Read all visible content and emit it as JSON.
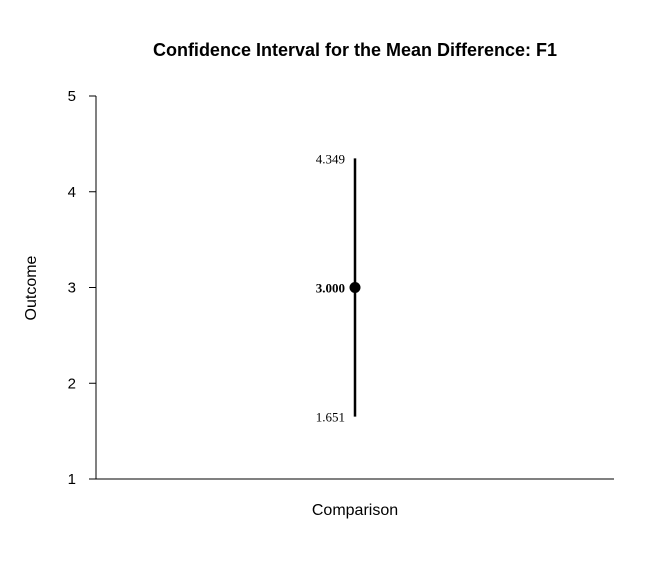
{
  "chart_data": {
    "type": "errorbar",
    "title": "Confidence Interval for the Mean Difference: F1",
    "xlabel": "Comparison",
    "ylabel": "Outcome",
    "ylim": [
      1,
      5
    ],
    "yticks": [
      1,
      2,
      3,
      4,
      5
    ],
    "grid": false,
    "legend": "none",
    "points": [
      {
        "estimate": 3.0,
        "lower": 1.651,
        "upper": 4.349,
        "estimate_label": "3.000",
        "lower_label": "1.651",
        "upper_label": "4.349"
      }
    ]
  }
}
